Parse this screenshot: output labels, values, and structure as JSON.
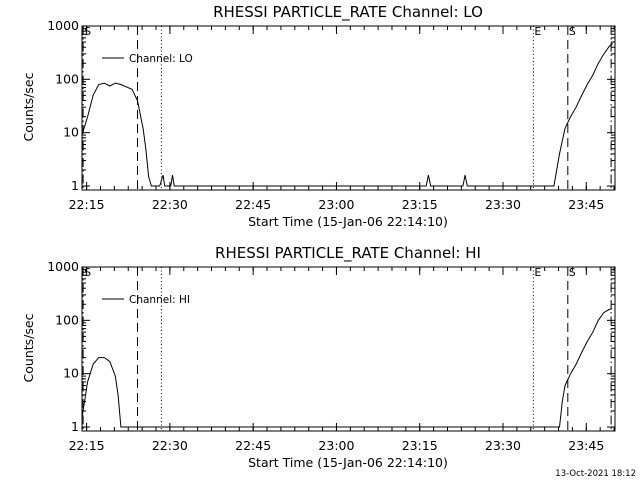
{
  "timestamp": "13-Oct-2021 18:12",
  "chart_data": [
    {
      "type": "line",
      "title": "RHESSI PARTICLE_RATE Channel: LO",
      "xlabel": "Start Time (15-Jan-06 22:14:10)",
      "ylabel": "Counts/sec",
      "yscale": "log",
      "xlim_minutes": [
        0,
        96
      ],
      "ylim": [
        1,
        1000
      ],
      "x_tick_labels": [
        "22:15",
        "22:30",
        "22:45",
        "23:00",
        "23:15",
        "23:30",
        "23:45"
      ],
      "x_tick_minutes": [
        0.83,
        15.83,
        30.83,
        45.83,
        60.83,
        75.83,
        90.83
      ],
      "y_tick_labels": [
        "1",
        "10",
        "100",
        "1000"
      ],
      "y_ticks": [
        1,
        10,
        100,
        1000
      ],
      "legend": "Channel: LO",
      "legend_position": "top-left",
      "markers": [
        {
          "minute": 0.2,
          "style": "dashdot",
          "label": "S"
        },
        {
          "minute": 10.0,
          "style": "dashed",
          "label": ""
        },
        {
          "minute": 14.3,
          "style": "dotted",
          "label": ""
        },
        {
          "minute": 81.3,
          "style": "dotted",
          "label": "E"
        },
        {
          "minute": 87.5,
          "style": "dashed",
          "label": "S"
        },
        {
          "minute": 95.3,
          "style": "dashdot",
          "label": ""
        }
      ],
      "series": [
        {
          "name": "Channel: LO",
          "points": [
            [
              0.0,
              9
            ],
            [
              1.0,
              20
            ],
            [
              2.0,
              50
            ],
            [
              3.0,
              80
            ],
            [
              4.0,
              85
            ],
            [
              5.0,
              75
            ],
            [
              6.0,
              85
            ],
            [
              7.0,
              80
            ],
            [
              8.0,
              72
            ],
            [
              9.0,
              65
            ],
            [
              10.0,
              40
            ],
            [
              11.0,
              12
            ],
            [
              11.5,
              5
            ],
            [
              12.0,
              1.5
            ],
            [
              12.5,
              1.0
            ],
            [
              13.0,
              1.0
            ],
            [
              14.0,
              1.0
            ],
            [
              14.6,
              1.6
            ],
            [
              14.9,
              1.0
            ],
            [
              16.0,
              1.0
            ],
            [
              16.3,
              1.6
            ],
            [
              16.6,
              1.0
            ],
            [
              62.0,
              1.0
            ],
            [
              62.4,
              1.6
            ],
            [
              62.8,
              1.0
            ],
            [
              68.6,
              1.0
            ],
            [
              69.0,
              1.6
            ],
            [
              69.4,
              1.0
            ],
            [
              85.0,
              1.0
            ],
            [
              86.0,
              4
            ],
            [
              87.0,
              12
            ],
            [
              88.0,
              20
            ],
            [
              89.0,
              30
            ],
            [
              90.0,
              50
            ],
            [
              91.0,
              80
            ],
            [
              92.0,
              120
            ],
            [
              93.0,
              200
            ],
            [
              94.0,
              300
            ],
            [
              95.0,
              420
            ],
            [
              95.6,
              470
            ]
          ]
        }
      ]
    },
    {
      "type": "line",
      "title": "RHESSI PARTICLE_RATE Channel: HI",
      "xlabel": "Start Time (15-Jan-06 22:14:10)",
      "ylabel": "Counts/sec",
      "yscale": "log",
      "xlim_minutes": [
        0,
        96
      ],
      "ylim": [
        1,
        1000
      ],
      "x_tick_labels": [
        "22:15",
        "22:30",
        "22:45",
        "23:00",
        "23:15",
        "23:30",
        "23:45"
      ],
      "x_tick_minutes": [
        0.83,
        15.83,
        30.83,
        45.83,
        60.83,
        75.83,
        90.83
      ],
      "y_tick_labels": [
        "1",
        "10",
        "100",
        "1000"
      ],
      "y_ticks": [
        1,
        10,
        100,
        1000
      ],
      "legend": "Channel: HI",
      "legend_position": "top-left",
      "markers": [
        {
          "minute": 0.2,
          "style": "dashdot",
          "label": "S"
        },
        {
          "minute": 10.0,
          "style": "dashed",
          "label": ""
        },
        {
          "minute": 14.3,
          "style": "dotted",
          "label": ""
        },
        {
          "minute": 81.3,
          "style": "dotted",
          "label": "E"
        },
        {
          "minute": 87.5,
          "style": "dashed",
          "label": "S"
        },
        {
          "minute": 95.3,
          "style": "dashdot",
          "label": ""
        }
      ],
      "series": [
        {
          "name": "Channel: HI",
          "points": [
            [
              0.0,
              1.5
            ],
            [
              1.0,
              7
            ],
            [
              2.0,
              15
            ],
            [
              3.0,
              20
            ],
            [
              4.0,
              20
            ],
            [
              5.0,
              17
            ],
            [
              6.0,
              9
            ],
            [
              6.5,
              4
            ],
            [
              7.0,
              1.0
            ],
            [
              86.0,
              1.0
            ],
            [
              86.5,
              3
            ],
            [
              87.0,
              6
            ],
            [
              88.0,
              10
            ],
            [
              89.0,
              15
            ],
            [
              90.0,
              25
            ],
            [
              91.0,
              40
            ],
            [
              92.0,
              60
            ],
            [
              93.0,
              100
            ],
            [
              94.0,
              140
            ],
            [
              95.0,
              160
            ],
            [
              95.5,
              165
            ]
          ]
        }
      ]
    }
  ]
}
